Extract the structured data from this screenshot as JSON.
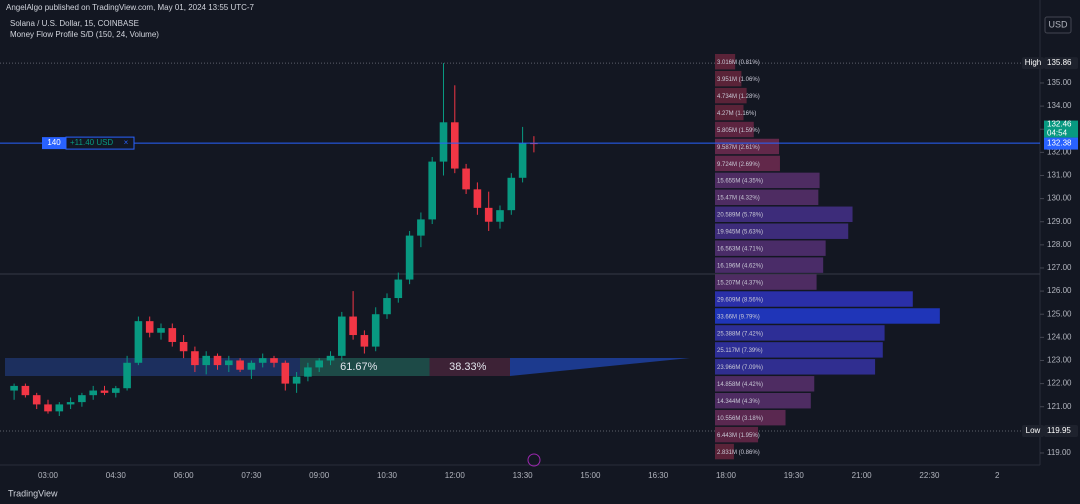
{
  "header": {
    "publisher": "AngelAlgo published on TradingView.com, May 01, 2024 13:55 UTC-7",
    "symbol": "Solana / U.S. Dollar, 15, COINBASE",
    "indicator": "Money Flow Profile S/D (150, 24, Volume)",
    "currency": "USD"
  },
  "footer": {
    "brand": "TradingView"
  },
  "chart_data": {
    "type": "candlestick",
    "x": [
      "02:15",
      "02:30",
      "02:45",
      "03:00",
      "03:15",
      "03:30",
      "03:45",
      "04:00",
      "04:15",
      "04:30",
      "04:45",
      "05:00",
      "05:15",
      "05:30",
      "05:45",
      "06:00",
      "06:15",
      "06:30",
      "06:45",
      "07:00",
      "07:15",
      "07:30",
      "07:45",
      "08:00",
      "08:15",
      "08:30",
      "08:45",
      "09:00",
      "09:15",
      "09:30",
      "09:45",
      "10:00",
      "10:15",
      "10:30",
      "10:45",
      "11:00",
      "11:15",
      "11:30",
      "11:45",
      "12:00",
      "12:15",
      "12:30",
      "12:45",
      "13:00",
      "13:15",
      "13:30",
      "13:45"
    ],
    "open": [
      121.7,
      121.9,
      121.5,
      121.1,
      120.8,
      121.1,
      121.2,
      121.5,
      121.7,
      121.6,
      121.8,
      122.9,
      124.7,
      124.2,
      124.4,
      123.8,
      123.4,
      122.8,
      123.2,
      122.8,
      123.0,
      122.6,
      122.9,
      123.1,
      122.9,
      122.0,
      122.3,
      122.7,
      123.0,
      123.2,
      124.9,
      124.1,
      123.6,
      125.0,
      125.7,
      126.5,
      128.4,
      129.1,
      131.6,
      133.3,
      131.3,
      130.4,
      129.6,
      129.0,
      129.5,
      130.9,
      132.4
    ],
    "high": [
      122.0,
      122.0,
      121.6,
      121.3,
      121.2,
      121.4,
      121.6,
      121.9,
      121.9,
      121.9,
      123.2,
      124.9,
      124.9,
      124.6,
      124.6,
      124.1,
      123.6,
      123.4,
      123.3,
      123.2,
      123.1,
      123.0,
      123.3,
      123.2,
      123.0,
      122.5,
      122.9,
      123.1,
      123.4,
      125.1,
      126.0,
      124.3,
      125.3,
      125.9,
      126.8,
      128.6,
      129.4,
      131.8,
      135.86,
      134.9,
      131.5,
      130.7,
      130.3,
      129.7,
      131.1,
      133.1,
      132.7
    ],
    "low": [
      121.3,
      121.4,
      120.9,
      120.7,
      120.6,
      120.9,
      121.0,
      121.3,
      121.5,
      121.4,
      121.7,
      122.8,
      124.0,
      123.9,
      123.6,
      123.1,
      122.5,
      122.4,
      122.6,
      122.5,
      122.5,
      122.2,
      122.7,
      122.7,
      121.7,
      121.6,
      122.1,
      122.5,
      122.8,
      123.0,
      123.9,
      123.3,
      123.4,
      124.8,
      125.5,
      126.3,
      127.9,
      128.9,
      131.0,
      131.1,
      130.2,
      129.3,
      128.6,
      128.7,
      129.3,
      130.7,
      132.0
    ],
    "close": [
      121.9,
      121.5,
      121.1,
      120.8,
      121.1,
      121.2,
      121.5,
      121.7,
      121.6,
      121.8,
      122.9,
      124.7,
      124.2,
      124.4,
      123.8,
      123.4,
      122.8,
      123.2,
      122.8,
      123.0,
      122.6,
      122.9,
      123.1,
      122.9,
      122.0,
      122.3,
      122.7,
      123.0,
      123.2,
      124.9,
      124.1,
      123.6,
      125.0,
      125.7,
      126.5,
      128.4,
      129.1,
      131.6,
      133.3,
      131.3,
      130.4,
      129.6,
      129.0,
      129.5,
      130.9,
      132.4,
      132.38
    ],
    "up_color": "#089981",
    "down_color": "#f23645",
    "ylim": [
      118.48,
      137.81
    ],
    "yticks": [
      {
        "value": 119,
        "label": "119.00"
      },
      {
        "value": 120,
        "label": "120.00"
      },
      {
        "value": 121,
        "label": "121.00"
      },
      {
        "value": 122,
        "label": "122.00"
      },
      {
        "value": 123,
        "label": "123.00"
      },
      {
        "value": 124,
        "label": "124.00"
      },
      {
        "value": 125,
        "label": "125.00"
      },
      {
        "value": 126,
        "label": "126.00"
      },
      {
        "value": 127,
        "label": "127.00"
      },
      {
        "value": 128,
        "label": "128.00"
      },
      {
        "value": 129,
        "label": "129.00"
      },
      {
        "value": 130,
        "label": "130.00"
      },
      {
        "value": 131,
        "label": "131.00"
      },
      {
        "value": 132,
        "label": "132.00"
      },
      {
        "value": 133,
        "label": "133.00"
      },
      {
        "value": 134,
        "label": "134.00"
      },
      {
        "value": 135,
        "label": "135.00"
      }
    ],
    "xtick_labels": [
      "03:00",
      "04:30",
      "06:00",
      "07:30",
      "09:00",
      "10:30",
      "12:00",
      "13:30",
      "15:00",
      "16:30",
      "18:00",
      "19:30",
      "21:00",
      "22:30",
      "2"
    ],
    "high_marker": {
      "tag": "High",
      "value": 135.86,
      "label": "135.86"
    },
    "low_marker": {
      "tag": "Low",
      "value": 119.95,
      "label": "119.95"
    },
    "last_price": {
      "value": 132.38,
      "label": "132.38",
      "prev_label": "132.46",
      "countdown": "04:54"
    },
    "position": {
      "quantity": "140",
      "pnl": "+11.40 USD",
      "close": "×",
      "price": 132.4
    },
    "profile": {
      "values": [
        3.016,
        3.951,
        4.734,
        4.27,
        5.805,
        9.587,
        9.724,
        15.655,
        15.47,
        20.589,
        19.945,
        16.563,
        16.196,
        15.207,
        29.609,
        33.66,
        25.388,
        25.117,
        23.966,
        14.858,
        14.344,
        10.556,
        6.443,
        2.831
      ],
      "value_labels": [
        "3.016M (0.81%)",
        "3.951M (1.06%)",
        "4.734M (1.28%)",
        "4.27M (1.16%)",
        "5.805M (1.59%)",
        "9.587M (2.61%)",
        "9.724M (2.69%)",
        "15.655M (4.35%)",
        "15.47M (4.32%)",
        "20.589M (5.78%)",
        "19.945M (5.63%)",
        "16.563M (4.71%)",
        "16.196M (4.62%)",
        "15.207M (4.37%)",
        "29.609M (8.56%)",
        "33.66M (9.79%)",
        "25.388M (7.42%)",
        "25.117M (7.39%)",
        "23.966M (7.09%)",
        "14.858M (4.42%)",
        "14.344M (4.3%)",
        "10.556M (3.18%)",
        "6.443M (1.95%)",
        "2.831M (0.86%)"
      ],
      "colors": [
        "#5a2338",
        "#5a2338",
        "#5a2338",
        "#5a2338",
        "#5c2440",
        "#62284a",
        "#62284a",
        "#4e2c62",
        "#4e2c62",
        "#3d2c7a",
        "#3d2c7a",
        "#4a2c68",
        "#4a2c68",
        "#4e2c62",
        "#2a2fa8",
        "#1f35b8",
        "#2d2e96",
        "#2d2e96",
        "#302e90",
        "#4e2c62",
        "#4e2c62",
        "#5a2850",
        "#5a2442",
        "#5a2338"
      ]
    },
    "buy_sell": {
      "buy": 61.67,
      "buy_label": "61.67%",
      "sell": 38.33,
      "sell_label": "38.33%",
      "buy_color": "#1d4a47",
      "sell_color": "#3d2236"
    }
  }
}
